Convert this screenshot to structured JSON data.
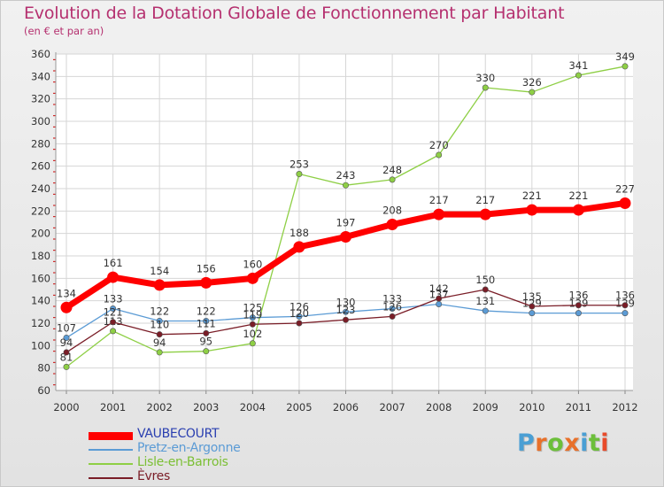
{
  "header": {
    "title": "Evolution de la Dotation Globale de Fonctionnement par Habitant",
    "subtitle": "(en € et par an)"
  },
  "logo": {
    "text": "Proxiti",
    "letter_colors": [
      "#4a9fd4",
      "#e8702a",
      "#6cbf3a",
      "#e8702a",
      "#4a9fd4",
      "#6cbf3a",
      "#e84a2a"
    ]
  },
  "chart_data": {
    "type": "line",
    "title": "Evolution de la Dotation Globale de Fonctionnement par Habitant",
    "subtitle": "(en € et par an)",
    "xlabel": "",
    "ylabel": "",
    "x": [
      "2000",
      "2001",
      "2002",
      "2003",
      "2004",
      "2005",
      "2006",
      "2007",
      "2008",
      "2009",
      "2010",
      "2011",
      "2012"
    ],
    "ylim": [
      60,
      360
    ],
    "yticks": [
      60,
      80,
      100,
      120,
      140,
      160,
      180,
      200,
      220,
      240,
      260,
      280,
      300,
      320,
      340,
      360
    ],
    "grid": true,
    "legend_position": "bottom-left",
    "series": [
      {
        "name": "Lisle-en-Barrois",
        "color": "#8ecf45",
        "width": 1.3,
        "marker": 3.2,
        "values": [
          81,
          113,
          94,
          95,
          102,
          253,
          243,
          248,
          270,
          330,
          326,
          341,
          349
        ]
      },
      {
        "name": "Pretz-en-Argonne",
        "color": "#5b9bd5",
        "width": 1.3,
        "marker": 3.2,
        "values": [
          107,
          133,
          122,
          122,
          125,
          126,
          130,
          133,
          137,
          131,
          129,
          129,
          129
        ]
      },
      {
        "name": "Èvres",
        "color": "#7a1d27",
        "width": 1.3,
        "marker": 3.2,
        "values": [
          94,
          121,
          110,
          111,
          119,
          120,
          123,
          126,
          142,
          150,
          135,
          136,
          136
        ]
      },
      {
        "name": "VAUBECOURT",
        "color": "#ff0000",
        "width": 7,
        "marker": 6.5,
        "values": [
          134,
          161,
          154,
          156,
          160,
          188,
          197,
          208,
          217,
          217,
          221,
          221,
          227
        ]
      }
    ],
    "legend_order": [
      "VAUBECOURT",
      "Pretz-en-Argonne",
      "Lisle-en-Barrois",
      "Èvres"
    ]
  }
}
